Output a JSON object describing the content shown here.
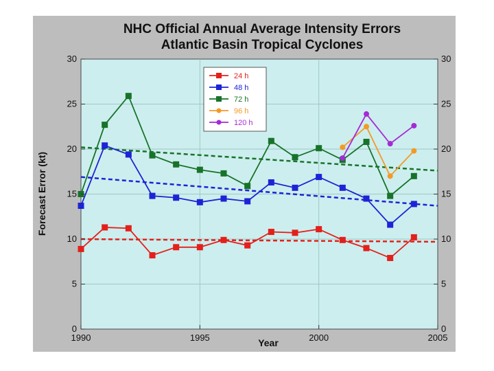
{
  "chart_data": {
    "type": "line",
    "title": "NHC Official Annual Average Intensity Errors",
    "subtitle": "Atlantic Basin Tropical Cyclones",
    "xlabel": "Year",
    "ylabel": "Forecast Error (kt)",
    "xlim": [
      1990,
      2005
    ],
    "ylim": [
      0,
      30
    ],
    "xticks": [
      1990,
      1995,
      2000,
      2005
    ],
    "yticks": [
      0,
      5,
      10,
      15,
      20,
      25,
      30
    ],
    "grid": true,
    "legend_position": "top-center",
    "series": [
      {
        "name": "24 h",
        "color": "#e3201b",
        "marker": "square",
        "x": [
          1990,
          1991,
          1992,
          1993,
          1994,
          1995,
          1996,
          1997,
          1998,
          1999,
          2000,
          2001,
          2002,
          2003,
          2004
        ],
        "values": [
          8.9,
          11.3,
          11.2,
          8.2,
          9.1,
          9.1,
          9.9,
          9.3,
          10.8,
          10.7,
          11.1,
          9.9,
          9.0,
          7.9,
          10.2
        ]
      },
      {
        "name": "48 h",
        "color": "#1c24d6",
        "marker": "square",
        "x": [
          1990,
          1991,
          1992,
          1993,
          1994,
          1995,
          1996,
          1997,
          1998,
          1999,
          2000,
          2001,
          2002,
          2003,
          2004
        ],
        "values": [
          13.7,
          20.4,
          19.4,
          14.8,
          14.6,
          14.1,
          14.5,
          14.2,
          16.3,
          15.7,
          16.9,
          15.7,
          14.5,
          11.6,
          13.9
        ]
      },
      {
        "name": "72 h",
        "color": "#17732a",
        "marker": "square",
        "x": [
          1990,
          1991,
          1992,
          1993,
          1994,
          1995,
          1996,
          1997,
          1998,
          1999,
          2000,
          2001,
          2002,
          2003,
          2004
        ],
        "values": [
          15.0,
          22.7,
          25.9,
          19.3,
          18.3,
          17.7,
          17.3,
          15.9,
          20.9,
          19.1,
          20.1,
          18.8,
          20.8,
          14.8,
          17.0
        ]
      },
      {
        "name": "96 h",
        "color": "#f39a26",
        "marker": "circle",
        "x": [
          2001,
          2002,
          2003,
          2004
        ],
        "values": [
          20.2,
          22.5,
          17.0,
          19.8
        ]
      },
      {
        "name": "120 h",
        "color": "#a52ad6",
        "marker": "circle",
        "x": [
          2001,
          2002,
          2003,
          2004
        ],
        "values": [
          19.0,
          23.9,
          20.6,
          22.6
        ]
      }
    ],
    "trendlines": [
      {
        "series": "24 h",
        "color": "#e3201b",
        "x": [
          1990,
          2005
        ],
        "values": [
          10.0,
          9.7
        ]
      },
      {
        "series": "48 h",
        "color": "#1c24d6",
        "x": [
          1990,
          2005
        ],
        "values": [
          16.9,
          13.7
        ]
      },
      {
        "series": "72 h",
        "color": "#17732a",
        "x": [
          1990,
          2005
        ],
        "values": [
          20.2,
          17.6
        ]
      }
    ],
    "colors": {
      "plot_background": "#cdeeee",
      "grid": "#9ec7c7",
      "legend_background": "#ffffff"
    }
  }
}
